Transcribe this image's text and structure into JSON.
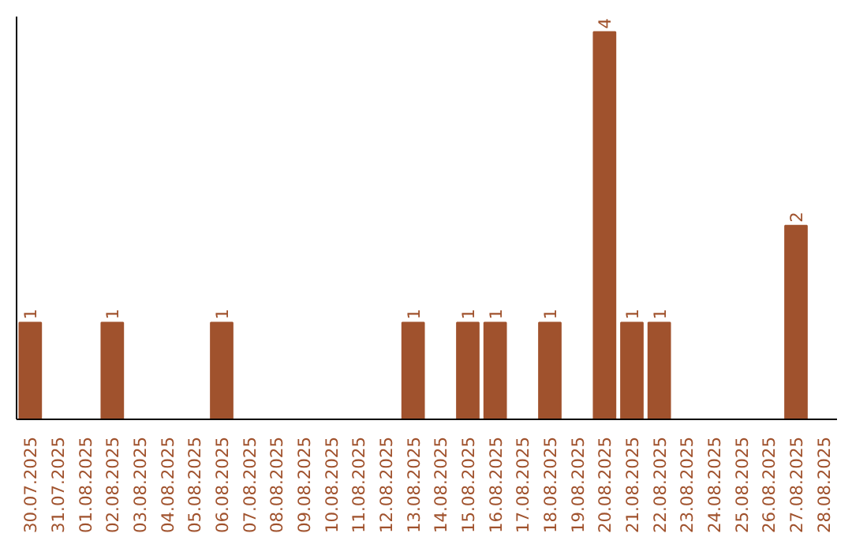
{
  "chart_data": {
    "type": "bar",
    "categories": [
      "30.07.2025",
      "31.07.2025",
      "01.08.2025",
      "02.08.2025",
      "03.08.2025",
      "04.08.2025",
      "05.08.2025",
      "06.08.2025",
      "07.08.2025",
      "08.08.2025",
      "09.08.2025",
      "10.08.2025",
      "11.08.2025",
      "12.08.2025",
      "13.08.2025",
      "14.08.2025",
      "15.08.2025",
      "16.08.2025",
      "17.08.2025",
      "18.08.2025",
      "19.08.2025",
      "20.08.2025",
      "21.08.2025",
      "22.08.2025",
      "23.08.2025",
      "24.08.2025",
      "25.08.2025",
      "26.08.2025",
      "27.08.2025",
      "28.08.2025"
    ],
    "values": [
      1,
      0,
      0,
      1,
      0,
      0,
      0,
      1,
      0,
      0,
      0,
      0,
      0,
      0,
      1,
      0,
      1,
      1,
      0,
      1,
      0,
      4,
      1,
      1,
      0,
      0,
      0,
      0,
      2,
      0
    ],
    "value_labels": [
      "1",
      null,
      null,
      "1",
      null,
      null,
      null,
      "1",
      null,
      null,
      null,
      null,
      null,
      null,
      "1",
      null,
      "1",
      "1",
      null,
      "1",
      null,
      "4",
      "1",
      "1",
      null,
      null,
      null,
      null,
      "2",
      null
    ],
    "color": "#a0522d",
    "ylim": [
      0,
      4.16
    ],
    "tick_labels": "x",
    "grid": false
  }
}
